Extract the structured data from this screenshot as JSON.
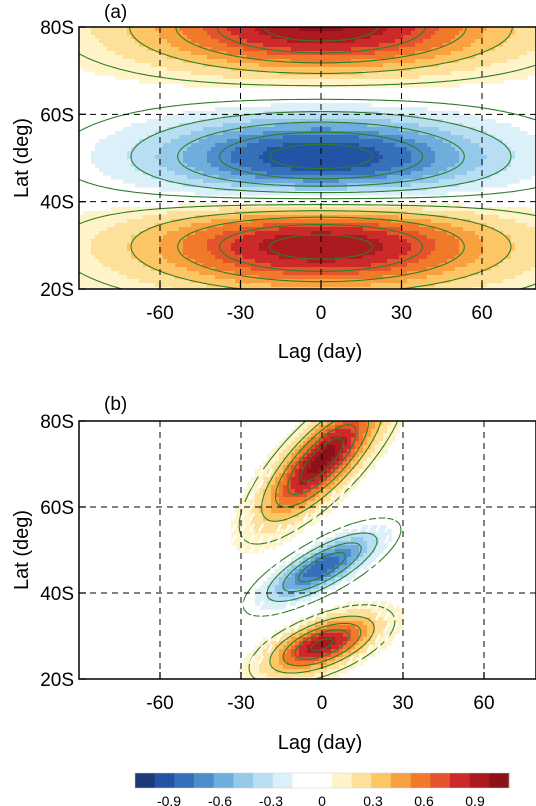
{
  "chart_data": [
    {
      "type": "heatmap",
      "panel_label": "(a)",
      "xlabel": "Lag (day)",
      "ylabel": "Lat (deg)",
      "xlim": [
        -80,
        80
      ],
      "ylim": [
        20,
        80
      ],
      "xticks": [
        -60,
        -30,
        0,
        30,
        60
      ],
      "xticklabels": [
        "-60",
        "-30",
        "0",
        "30",
        "60"
      ],
      "yticks": [
        20,
        40,
        60,
        80
      ],
      "yticklabels": [
        "20S",
        "40S",
        "60S",
        "80S"
      ],
      "grid": "dashed",
      "overlay": "green contour lines (solid positive, dashed negative)",
      "features": [
        {
          "lag": 0,
          "lat": 30,
          "value": 1.0,
          "lat_halfwidth": 10,
          "lag_halfwidth": 65
        },
        {
          "lag": 0,
          "lat": 50,
          "value": -1.0,
          "lat_halfwidth": 10,
          "lag_halfwidth": 65
        },
        {
          "lag": 0,
          "lat": 80,
          "value": 1.0,
          "lat_halfwidth": 10,
          "lag_halfwidth": 65
        }
      ]
    },
    {
      "type": "heatmap",
      "panel_label": "(b)",
      "xlabel": "Lag (day)",
      "ylabel": "Lat (deg)",
      "xlim": [
        -80,
        80
      ],
      "ylim": [
        20,
        80
      ],
      "xticks": [
        -60,
        -30,
        0,
        30,
        60
      ],
      "xticklabels": [
        "-60",
        "-30",
        "0",
        "30",
        "60"
      ],
      "yticks": [
        20,
        40,
        60,
        80
      ],
      "yticklabels": [
        "20S",
        "40S",
        "60S",
        "80S"
      ],
      "grid": "dashed",
      "overlay": "green contour lines (solid positive, dashed negative); white hatching marks significance",
      "features": [
        {
          "lag": 0,
          "lat": 71,
          "value": 1.05,
          "lat_halfwidth": 8,
          "lag_halfwidth": 20,
          "tilt_lat_per_day": 0.5
        },
        {
          "lag": 0,
          "lat": 46,
          "value": -0.85,
          "lat_halfwidth": 5,
          "lag_halfwidth": 20,
          "tilt_lat_per_day": 0.3
        },
        {
          "lag": 0,
          "lat": 28,
          "value": 0.95,
          "lat_halfwidth": 5,
          "lag_halfwidth": 18,
          "tilt_lat_per_day": 0.2
        }
      ]
    }
  ],
  "colorbar": {
    "ticks": [
      "-0.9",
      "-0.6",
      "-0.3",
      "0",
      "0.3",
      "0.6",
      "0.9"
    ],
    "range": [
      -1.1,
      1.1
    ],
    "colors": [
      "#1c3a78",
      "#2353a4",
      "#3670b8",
      "#4d8dcb",
      "#6eaddc",
      "#94c9ea",
      "#b8def4",
      "#dcf0fa",
      "#ffffff",
      "#ffffff",
      "#fff4c7",
      "#fde19a",
      "#fcc665",
      "#f8a13e",
      "#f07a2a",
      "#e3542c",
      "#cc2a2a",
      "#ab1a1f",
      "#8b1219"
    ]
  }
}
